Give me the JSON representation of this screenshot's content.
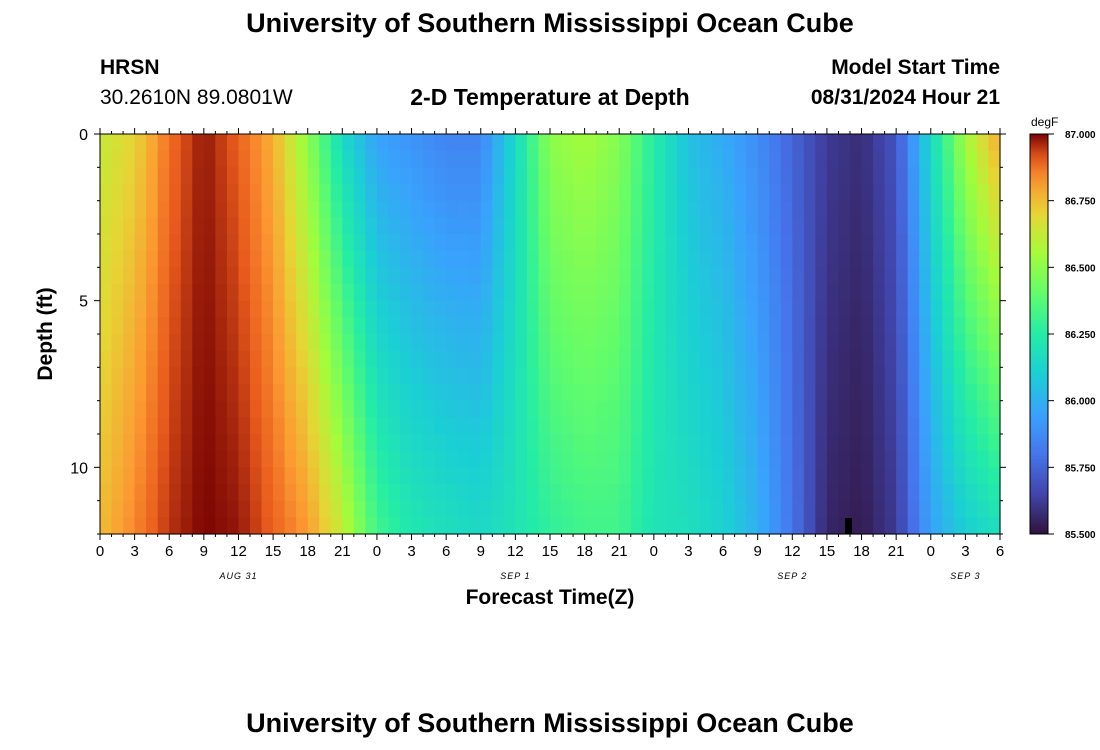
{
  "header": {
    "title": "University of Southern Mississippi Ocean Cube",
    "station_id": "HRSN",
    "station_coords": "30.2610N  89.0801W",
    "plot_title": "2-D Temperature at Depth",
    "model_start_label": "Model Start Time",
    "model_start_value": "08/31/2024 Hour 21"
  },
  "footer": {
    "title": "University of Southern Mississippi Ocean Cube"
  },
  "chart_data": {
    "type": "heatmap",
    "xlabel": "Forecast Time(Z)",
    "ylabel": "Depth (ft)",
    "x_tick_labels": [
      "0",
      "3",
      "6",
      "9",
      "12",
      "15",
      "18",
      "21",
      "0",
      "3",
      "6",
      "9",
      "12",
      "15",
      "18",
      "21",
      "0",
      "3",
      "6",
      "9",
      "12",
      "15",
      "18",
      "21",
      "0",
      "3",
      "6"
    ],
    "date_labels": [
      {
        "text": "AUG 31",
        "hour": 12
      },
      {
        "text": "SEP 1",
        "hour": 36
      },
      {
        "text": "SEP 2",
        "hour": 60
      },
      {
        "text": "SEP 3",
        "hour": 75
      }
    ],
    "x_range_hours": [
      0,
      78
    ],
    "y_ticks": [
      0,
      5,
      10
    ],
    "y_range_ft": [
      0,
      12
    ],
    "colorbar": {
      "unit": "degF",
      "min": 85.5,
      "max": 87.0,
      "tick_values": [
        87.0,
        86.75,
        86.5,
        86.25,
        86.0,
        85.75,
        85.5
      ],
      "tick_labels": [
        "87.000",
        "86.750",
        "86.500",
        "86.250",
        "86.000",
        "85.750",
        "85.500"
      ]
    },
    "columns": [
      {
        "hour": 0,
        "surface": 86.62,
        "bottom": 86.75
      },
      {
        "hour": 3,
        "surface": 86.7,
        "bottom": 86.85
      },
      {
        "hour": 6,
        "surface": 86.88,
        "bottom": 86.95
      },
      {
        "hour": 9,
        "surface": 86.98,
        "bottom": 87.0
      },
      {
        "hour": 12,
        "surface": 86.9,
        "bottom": 86.98
      },
      {
        "hour": 15,
        "surface": 86.78,
        "bottom": 86.9
      },
      {
        "hour": 18,
        "surface": 86.5,
        "bottom": 86.82
      },
      {
        "hour": 21,
        "surface": 86.15,
        "bottom": 86.62
      },
      {
        "hour": 24,
        "surface": 85.95,
        "bottom": 86.32
      },
      {
        "hour": 27,
        "surface": 85.9,
        "bottom": 86.22
      },
      {
        "hour": 30,
        "surface": 85.85,
        "bottom": 86.18
      },
      {
        "hour": 33,
        "surface": 85.85,
        "bottom": 86.15
      },
      {
        "hour": 36,
        "surface": 86.15,
        "bottom": 86.2
      },
      {
        "hour": 39,
        "surface": 86.5,
        "bottom": 86.28
      },
      {
        "hour": 42,
        "surface": 86.55,
        "bottom": 86.32
      },
      {
        "hour": 45,
        "surface": 86.48,
        "bottom": 86.32
      },
      {
        "hour": 48,
        "surface": 86.25,
        "bottom": 86.2
      },
      {
        "hour": 51,
        "surface": 86.05,
        "bottom": 86.18
      },
      {
        "hour": 54,
        "surface": 85.98,
        "bottom": 86.12
      },
      {
        "hour": 57,
        "surface": 85.88,
        "bottom": 86.0
      },
      {
        "hour": 60,
        "surface": 85.75,
        "bottom": 85.8
      },
      {
        "hour": 63,
        "surface": 85.62,
        "bottom": 85.56
      },
      {
        "hour": 66,
        "surface": 85.58,
        "bottom": 85.53
      },
      {
        "hour": 69,
        "surface": 85.7,
        "bottom": 85.62
      },
      {
        "hour": 72,
        "surface": 86.15,
        "bottom": 85.95
      },
      {
        "hour": 75,
        "surface": 86.55,
        "bottom": 86.1
      },
      {
        "hour": 78,
        "surface": 86.8,
        "bottom": 86.18
      }
    ]
  }
}
